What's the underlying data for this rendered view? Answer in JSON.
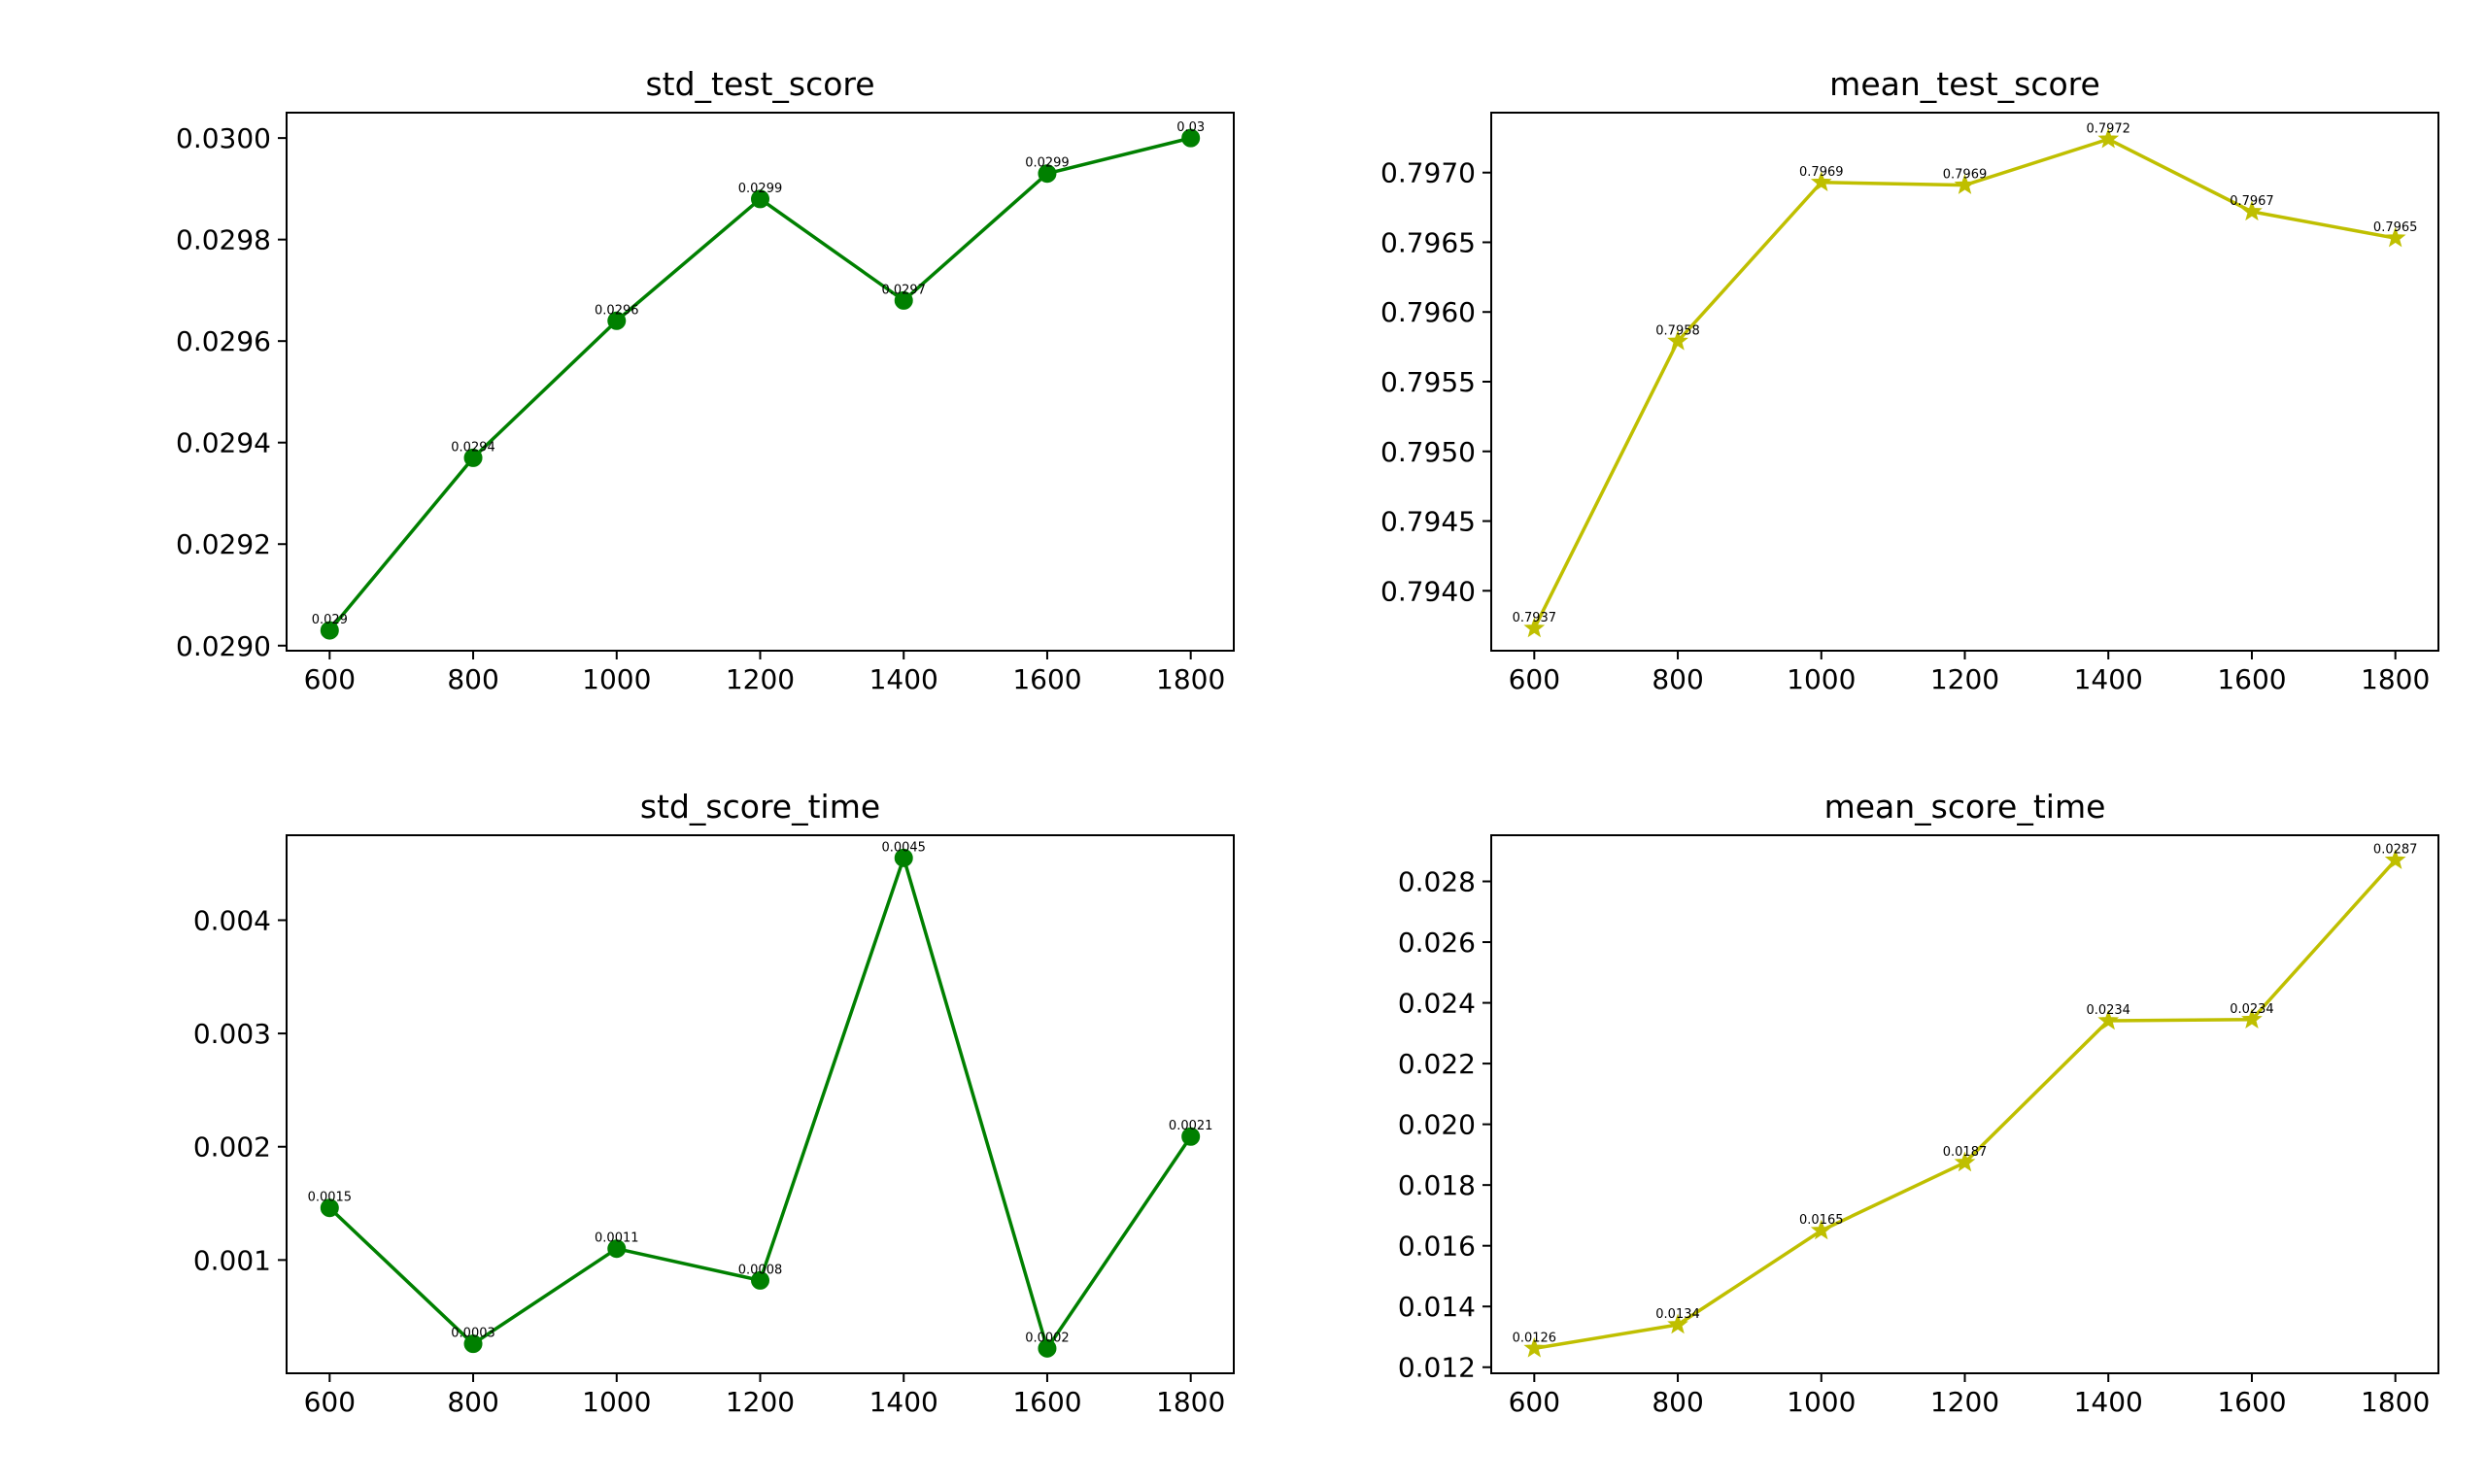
{
  "chart_data": [
    {
      "type": "line",
      "title": "std_test_score",
      "xlabel": "",
      "ylabel": "",
      "x": [
        600,
        800,
        1000,
        1200,
        1400,
        1600,
        1800
      ],
      "series": [
        {
          "values": [
            0.02903,
            0.02937,
            0.02964,
            0.02988,
            0.02968,
            0.02993,
            0.03
          ],
          "data_labels": [
            "0.029",
            "0.0294",
            "0.0296",
            "0.0299",
            "0.0297",
            "0.0299",
            "0.03"
          ],
          "color": "#008000",
          "marker": "circle"
        }
      ],
      "xlim": [
        540,
        1860
      ],
      "ylim": [
        0.02899,
        0.03005
      ],
      "xticks": [
        600,
        800,
        1000,
        1200,
        1400,
        1600,
        1800
      ],
      "xtick_labels": [
        "600",
        "800",
        "1000",
        "1200",
        "1400",
        "1600",
        "1800"
      ],
      "yticks": [
        0.029,
        0.0292,
        0.0294,
        0.0296,
        0.0298,
        0.03
      ],
      "ytick_labels": [
        "0.0290",
        "0.0292",
        "0.0294",
        "0.0296",
        "0.0298",
        "0.0300"
      ],
      "grid": false
    },
    {
      "type": "line",
      "title": "mean_test_score",
      "xlabel": "",
      "ylabel": "",
      "x": [
        600,
        800,
        1000,
        1200,
        1400,
        1600,
        1800
      ],
      "series": [
        {
          "values": [
            0.79373,
            0.79579,
            0.79693,
            0.79691,
            0.79724,
            0.79672,
            0.79653
          ],
          "data_labels": [
            "0.7937",
            "0.7958",
            "0.7969",
            "0.7969",
            "0.7972",
            "0.7967",
            "0.7965"
          ],
          "color": "#bfbf00",
          "marker": "star"
        }
      ],
      "xlim": [
        540,
        1860
      ],
      "ylim": [
        0.79357,
        0.79743
      ],
      "xticks": [
        600,
        800,
        1000,
        1200,
        1400,
        1600,
        1800
      ],
      "xtick_labels": [
        "600",
        "800",
        "1000",
        "1200",
        "1400",
        "1600",
        "1800"
      ],
      "yticks": [
        0.794,
        0.7945,
        0.795,
        0.7955,
        0.796,
        0.7965,
        0.797
      ],
      "ytick_labels": [
        "0.7940",
        "0.7945",
        "0.7950",
        "0.7955",
        "0.7960",
        "0.7965",
        "0.7970"
      ],
      "grid": false
    },
    {
      "type": "line",
      "title": "std_score_time",
      "xlabel": "",
      "ylabel": "",
      "x": [
        600,
        800,
        1000,
        1200,
        1400,
        1600,
        1800
      ],
      "series": [
        {
          "values": [
            0.00146,
            0.00026,
            0.0011,
            0.00082,
            0.00455,
            0.00022,
            0.00209
          ],
          "data_labels": [
            "0.0015",
            "0.0003",
            "0.0011",
            "0.0008",
            "0.0045",
            "0.0002",
            "0.0021"
          ],
          "color": "#008000",
          "marker": "circle"
        }
      ],
      "xlim": [
        540,
        1860
      ],
      "ylim": [
        0.0,
        0.00475
      ],
      "xticks": [
        600,
        800,
        1000,
        1200,
        1400,
        1600,
        1800
      ],
      "xtick_labels": [
        "600",
        "800",
        "1000",
        "1200",
        "1400",
        "1600",
        "1800"
      ],
      "yticks": [
        0.001,
        0.002,
        0.003,
        0.004
      ],
      "ytick_labels": [
        "0.001",
        "0.002",
        "0.003",
        "0.004"
      ],
      "grid": false
    },
    {
      "type": "line",
      "title": "mean_score_time",
      "xlabel": "",
      "ylabel": "",
      "x": [
        600,
        800,
        1000,
        1200,
        1400,
        1600,
        1800
      ],
      "series": [
        {
          "values": [
            0.01262,
            0.0134,
            0.0165,
            0.01874,
            0.02341,
            0.02345,
            0.0287
          ],
          "data_labels": [
            "0.0126",
            "0.0134",
            "0.0165",
            "0.0187",
            "0.0234",
            "0.0234",
            "0.0287"
          ],
          "color": "#bfbf00",
          "marker": "star"
        }
      ],
      "xlim": [
        540,
        1860
      ],
      "ylim": [
        0.0118,
        0.02952
      ],
      "xticks": [
        600,
        800,
        1000,
        1200,
        1400,
        1600,
        1800
      ],
      "xtick_labels": [
        "600",
        "800",
        "1000",
        "1200",
        "1400",
        "1600",
        "1800"
      ],
      "yticks": [
        0.012,
        0.014,
        0.016,
        0.018,
        0.02,
        0.022,
        0.024,
        0.026,
        0.028
      ],
      "ytick_labels": [
        "0.012",
        "0.014",
        "0.016",
        "0.018",
        "0.020",
        "0.022",
        "0.024",
        "0.026",
        "0.028"
      ],
      "grid": false
    }
  ]
}
